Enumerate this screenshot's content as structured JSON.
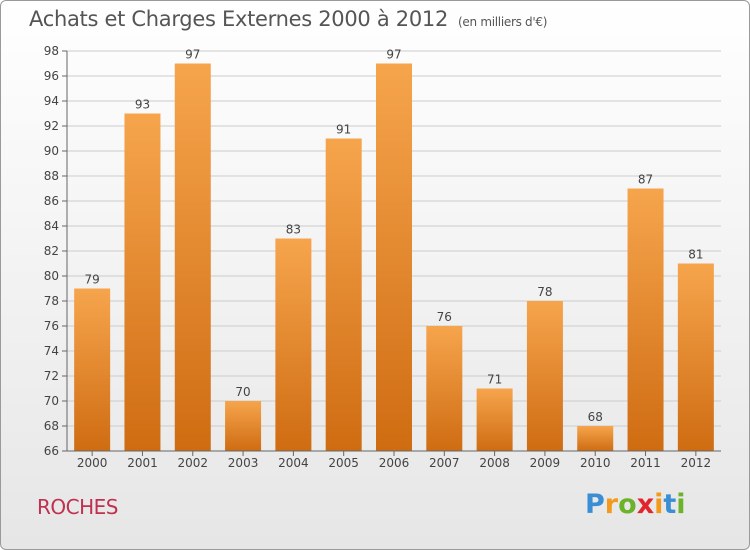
{
  "header": {
    "title": "Achats et Charges Externes 2000 à 2012",
    "unit": "(en milliers d'€)"
  },
  "footer": {
    "commune": "ROCHES",
    "logo": {
      "text": "Proxiti",
      "letter_colors": [
        "#3a8fd4",
        "#f39a1c",
        "#6cb32a",
        "#e2242b",
        "#f39a1c",
        "#3a8fd4",
        "#6cb32a"
      ]
    }
  },
  "colors": {
    "bar_top": "#f6a54d",
    "bar_bottom": "#cf6c12",
    "grid": "#cccccc",
    "text": "#444444"
  },
  "chart_data": {
    "type": "bar",
    "title": "Achats et Charges Externes 2000 à 2012",
    "subtitle": "(en milliers d'€)",
    "categories": [
      "2000",
      "2001",
      "2002",
      "2003",
      "2004",
      "2005",
      "2006",
      "2007",
      "2008",
      "2009",
      "2010",
      "2011",
      "2012"
    ],
    "values": [
      79,
      93,
      97,
      70,
      83,
      91,
      97,
      76,
      71,
      78,
      68,
      87,
      81
    ],
    "ylim": [
      66,
      98
    ],
    "yticks": [
      66,
      68,
      70,
      72,
      74,
      76,
      78,
      80,
      82,
      84,
      86,
      88,
      90,
      92,
      94,
      96,
      98
    ],
    "grid": true,
    "xlabel": "",
    "ylabel": ""
  }
}
